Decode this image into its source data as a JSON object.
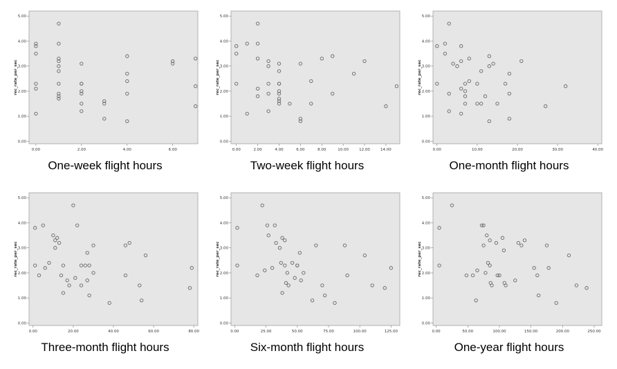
{
  "chart_data": [
    {
      "type": "scatter",
      "caption": "One-week flight hours",
      "ylabel": "rec_rate_per_sec",
      "xlim": [
        -0.3,
        7.1
      ],
      "ylim": [
        -0.1,
        5.2
      ],
      "xticks": [
        "0.00",
        "2.00",
        "4.00",
        "6.00"
      ],
      "xtick_values": [
        0,
        2,
        4,
        6
      ],
      "yticks": [
        "0.00",
        "1.00",
        "2.00",
        "3.00",
        "4.00",
        "5.00"
      ],
      "ytick_values": [
        0,
        1,
        2,
        3,
        4,
        5
      ],
      "points": [
        [
          0,
          3.9
        ],
        [
          0,
          3.8
        ],
        [
          0,
          3.5
        ],
        [
          0,
          2.3
        ],
        [
          0,
          2.1
        ],
        [
          0,
          1.1
        ],
        [
          1,
          4.7
        ],
        [
          1,
          3.9
        ],
        [
          1,
          3.3
        ],
        [
          1,
          3.2
        ],
        [
          1,
          3.0
        ],
        [
          1,
          2.8
        ],
        [
          1,
          2.3
        ],
        [
          1,
          1.9
        ],
        [
          1,
          1.8
        ],
        [
          1,
          1.7
        ],
        [
          2,
          3.1
        ],
        [
          2,
          2.3
        ],
        [
          2,
          2.3
        ],
        [
          2,
          2.0
        ],
        [
          2,
          1.9
        ],
        [
          2,
          1.5
        ],
        [
          2,
          1.2
        ],
        [
          3,
          1.6
        ],
        [
          3,
          1.5
        ],
        [
          3,
          0.9
        ],
        [
          4,
          3.4
        ],
        [
          4,
          2.7
        ],
        [
          4,
          2.4
        ],
        [
          4,
          1.9
        ],
        [
          4,
          0.8
        ],
        [
          6,
          3.2
        ],
        [
          6,
          3.1
        ],
        [
          7,
          3.3
        ],
        [
          7,
          2.2
        ],
        [
          7,
          1.4
        ]
      ]
    },
    {
      "type": "scatter",
      "caption": "Two-week flight hours",
      "ylabel": "rec_rate_per_sec",
      "xlim": [
        -0.5,
        15.3
      ],
      "ylim": [
        -0.1,
        5.2
      ],
      "xticks": [
        "0.00",
        "2.00",
        "4.00",
        "6.00",
        "8.00",
        "10.00",
        "12.00",
        "14.00"
      ],
      "xtick_values": [
        0,
        2,
        4,
        6,
        8,
        10,
        12,
        14
      ],
      "yticks": [
        "0.00",
        "1.00",
        "2.00",
        "3.00",
        "4.00",
        "5.00"
      ],
      "ytick_values": [
        0,
        1,
        2,
        3,
        4,
        5
      ],
      "points": [
        [
          0,
          3.8
        ],
        [
          0,
          3.5
        ],
        [
          0,
          2.3
        ],
        [
          1,
          1.1
        ],
        [
          1,
          3.9
        ],
        [
          2,
          4.7
        ],
        [
          2,
          3.9
        ],
        [
          2,
          3.3
        ],
        [
          2,
          2.1
        ],
        [
          2,
          1.8
        ],
        [
          3,
          3.2
        ],
        [
          3,
          3.0
        ],
        [
          3,
          2.3
        ],
        [
          3,
          1.9
        ],
        [
          3,
          1.2
        ],
        [
          4,
          3.1
        ],
        [
          4,
          2.8
        ],
        [
          4,
          2.3
        ],
        [
          4,
          2.3
        ],
        [
          4,
          2.0
        ],
        [
          4,
          1.9
        ],
        [
          4,
          1.7
        ],
        [
          4,
          1.6
        ],
        [
          4,
          1.5
        ],
        [
          5,
          1.5
        ],
        [
          6,
          3.1
        ],
        [
          6,
          0.9
        ],
        [
          6,
          0.8
        ],
        [
          7,
          2.4
        ],
        [
          7,
          1.5
        ],
        [
          8,
          3.3
        ],
        [
          9,
          3.4
        ],
        [
          9,
          1.9
        ],
        [
          11,
          2.7
        ],
        [
          12,
          3.2
        ],
        [
          14,
          1.4
        ],
        [
          15,
          2.2
        ]
      ]
    },
    {
      "type": "scatter",
      "caption": "One-month flight hours",
      "ylabel": "rec_rate_per_sec",
      "xlim": [
        -1,
        41
      ],
      "ylim": [
        -0.1,
        5.2
      ],
      "xticks": [
        "0.00",
        "10.00",
        "20.00",
        "30.00",
        "40.00"
      ],
      "xtick_values": [
        0,
        10,
        20,
        30,
        40
      ],
      "yticks": [
        "0.00",
        "1.00",
        "2.00",
        "3.00",
        "4.00",
        "5.00"
      ],
      "ytick_values": [
        0,
        1,
        2,
        3,
        4,
        5
      ],
      "points": [
        [
          0,
          3.8
        ],
        [
          0,
          2.3
        ],
        [
          2,
          3.9
        ],
        [
          2,
          3.5
        ],
        [
          3,
          4.7
        ],
        [
          3,
          1.9
        ],
        [
          3,
          1.2
        ],
        [
          4,
          3.1
        ],
        [
          5,
          3.0
        ],
        [
          6,
          3.8
        ],
        [
          6,
          3.2
        ],
        [
          6,
          2.1
        ],
        [
          6,
          1.1
        ],
        [
          7,
          2.3
        ],
        [
          7,
          2.0
        ],
        [
          7,
          1.8
        ],
        [
          7,
          1.5
        ],
        [
          8,
          3.3
        ],
        [
          8,
          2.4
        ],
        [
          10,
          2.3
        ],
        [
          10,
          1.5
        ],
        [
          11,
          2.8
        ],
        [
          11,
          1.5
        ],
        [
          12,
          1.8
        ],
        [
          13,
          3.4
        ],
        [
          13,
          3.0
        ],
        [
          13,
          0.8
        ],
        [
          14,
          3.1
        ],
        [
          15,
          1.5
        ],
        [
          17,
          2.3
        ],
        [
          18,
          2.7
        ],
        [
          18,
          1.9
        ],
        [
          18,
          0.9
        ],
        [
          21,
          3.2
        ],
        [
          27,
          1.4
        ],
        [
          32,
          2.2
        ]
      ]
    },
    {
      "type": "scatter",
      "caption": "Three-month flight hours",
      "ylabel": "rec_rate_per_sec",
      "xlim": [
        -2,
        82
      ],
      "ylim": [
        -0.1,
        5.2
      ],
      "xticks": [
        "0.00",
        "20.00",
        "40.00",
        "60.00",
        "80.00"
      ],
      "xtick_values": [
        0,
        20,
        40,
        60,
        80
      ],
      "yticks": [
        "0.00",
        "1.00",
        "2.00",
        "3.00",
        "4.00",
        "5.00"
      ],
      "ytick_values": [
        0,
        1,
        2,
        3,
        4,
        5
      ],
      "points": [
        [
          1,
          3.8
        ],
        [
          1,
          2.3
        ],
        [
          3,
          1.9
        ],
        [
          5,
          3.9
        ],
        [
          6,
          2.2
        ],
        [
          8,
          2.4
        ],
        [
          10,
          3.5
        ],
        [
          11,
          3.3
        ],
        [
          11,
          3.0
        ],
        [
          12,
          3.4
        ],
        [
          13,
          3.2
        ],
        [
          14,
          1.9
        ],
        [
          15,
          2.3
        ],
        [
          15,
          1.2
        ],
        [
          17,
          1.7
        ],
        [
          18,
          1.5
        ],
        [
          20,
          4.7
        ],
        [
          21,
          1.8
        ],
        [
          22,
          3.9
        ],
        [
          24,
          2.3
        ],
        [
          24,
          1.5
        ],
        [
          26,
          2.3
        ],
        [
          27,
          2.8
        ],
        [
          27,
          1.7
        ],
        [
          28,
          2.3
        ],
        [
          28,
          1.1
        ],
        [
          30,
          3.1
        ],
        [
          30,
          2.0
        ],
        [
          38,
          0.8
        ],
        [
          46,
          3.1
        ],
        [
          46,
          1.9
        ],
        [
          48,
          3.2
        ],
        [
          53,
          1.5
        ],
        [
          54,
          0.9
        ],
        [
          56,
          2.7
        ],
        [
          78,
          1.4
        ],
        [
          79,
          2.2
        ]
      ]
    },
    {
      "type": "scatter",
      "caption": "Six-month flight hours",
      "ylabel": "rec_rate_per_sec",
      "xlim": [
        -3,
        132
      ],
      "ylim": [
        -0.1,
        5.2
      ],
      "xticks": [
        "0.00",
        "25.00",
        "50.00",
        "75.00",
        "100.00",
        "125.00"
      ],
      "xtick_values": [
        0,
        25,
        50,
        75,
        100,
        125
      ],
      "yticks": [
        "0.00",
        "1.00",
        "2.00",
        "3.00",
        "4.00",
        "5.00"
      ],
      "ytick_values": [
        0,
        1,
        2,
        3,
        4,
        5
      ],
      "points": [
        [
          2,
          3.8
        ],
        [
          2,
          2.3
        ],
        [
          18,
          1.9
        ],
        [
          22,
          4.7
        ],
        [
          24,
          2.1
        ],
        [
          26,
          3.9
        ],
        [
          27,
          3.5
        ],
        [
          30,
          2.2
        ],
        [
          32,
          3.9
        ],
        [
          33,
          3.2
        ],
        [
          36,
          3.0
        ],
        [
          37,
          2.4
        ],
        [
          38,
          3.4
        ],
        [
          38,
          1.2
        ],
        [
          40,
          3.3
        ],
        [
          40,
          2.3
        ],
        [
          41,
          1.6
        ],
        [
          42,
          2.0
        ],
        [
          43,
          1.5
        ],
        [
          46,
          2.4
        ],
        [
          48,
          1.8
        ],
        [
          50,
          2.3
        ],
        [
          50,
          2.3
        ],
        [
          52,
          2.8
        ],
        [
          53,
          1.7
        ],
        [
          55,
          2.0
        ],
        [
          62,
          0.9
        ],
        [
          65,
          3.1
        ],
        [
          70,
          1.5
        ],
        [
          72,
          1.1
        ],
        [
          80,
          0.8
        ],
        [
          88,
          3.1
        ],
        [
          90,
          1.9
        ],
        [
          104,
          2.7
        ],
        [
          110,
          1.5
        ],
        [
          120,
          1.4
        ],
        [
          125,
          2.2
        ]
      ]
    },
    {
      "type": "scatter",
      "caption": "One-year flight hours",
      "ylabel": "rec_rate_per_sec",
      "xlim": [
        -5,
        262
      ],
      "ylim": [
        -0.1,
        5.2
      ],
      "xticks": [
        "0.00",
        "50.00",
        "100.00",
        "150.00",
        "200.00",
        "250.00"
      ],
      "xtick_values": [
        0,
        50,
        100,
        150,
        200,
        250
      ],
      "yticks": [
        "0.00",
        "1.00",
        "2.00",
        "3.00",
        "4.00",
        "5.00"
      ],
      "ytick_values": [
        0,
        1,
        2,
        3,
        4,
        5
      ],
      "points": [
        [
          5,
          3.8
        ],
        [
          5,
          2.3
        ],
        [
          25,
          4.7
        ],
        [
          48,
          1.9
        ],
        [
          58,
          1.9
        ],
        [
          63,
          0.9
        ],
        [
          65,
          2.1
        ],
        [
          72,
          3.9
        ],
        [
          75,
          3.9
        ],
        [
          75,
          3.1
        ],
        [
          78,
          2.0
        ],
        [
          80,
          3.5
        ],
        [
          82,
          2.4
        ],
        [
          85,
          3.3
        ],
        [
          85,
          2.3
        ],
        [
          86,
          1.6
        ],
        [
          88,
          1.5
        ],
        [
          95,
          3.2
        ],
        [
          97,
          1.9
        ],
        [
          100,
          1.9
        ],
        [
          105,
          3.4
        ],
        [
          107,
          2.9
        ],
        [
          108,
          1.6
        ],
        [
          110,
          1.5
        ],
        [
          125,
          1.7
        ],
        [
          130,
          3.2
        ],
        [
          135,
          3.1
        ],
        [
          140,
          3.3
        ],
        [
          155,
          2.2
        ],
        [
          160,
          1.9
        ],
        [
          162,
          1.1
        ],
        [
          175,
          3.1
        ],
        [
          178,
          2.2
        ],
        [
          190,
          0.8
        ],
        [
          210,
          2.7
        ],
        [
          222,
          1.5
        ],
        [
          238,
          1.4
        ]
      ]
    }
  ]
}
